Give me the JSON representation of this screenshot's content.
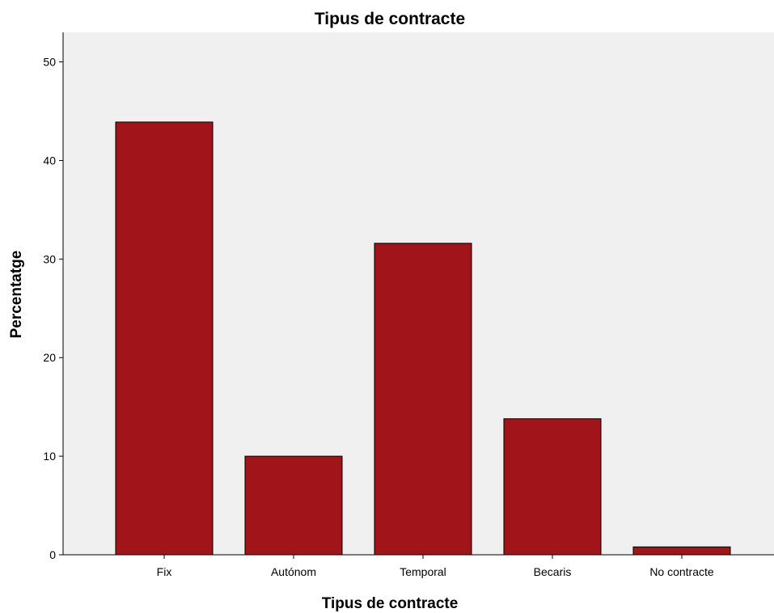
{
  "chart_data": {
    "type": "bar",
    "title": "Tipus de contracte",
    "xlabel": "Tipus de contracte",
    "ylabel": "Percentatge",
    "categories": [
      "Fix",
      "Autónom",
      "Temporal",
      "Becaris",
      "No contracte"
    ],
    "values": [
      43.9,
      10.0,
      31.6,
      13.8,
      0.8
    ],
    "ylim": [
      0,
      53
    ],
    "yticks": [
      "0",
      "10",
      "20",
      "30",
      "40",
      "50"
    ],
    "grid": false,
    "legend": "none",
    "colors": {
      "bar_fill": "#a0141a",
      "bar_stroke": "#000000",
      "plot_background": "#f0f0f0"
    }
  }
}
